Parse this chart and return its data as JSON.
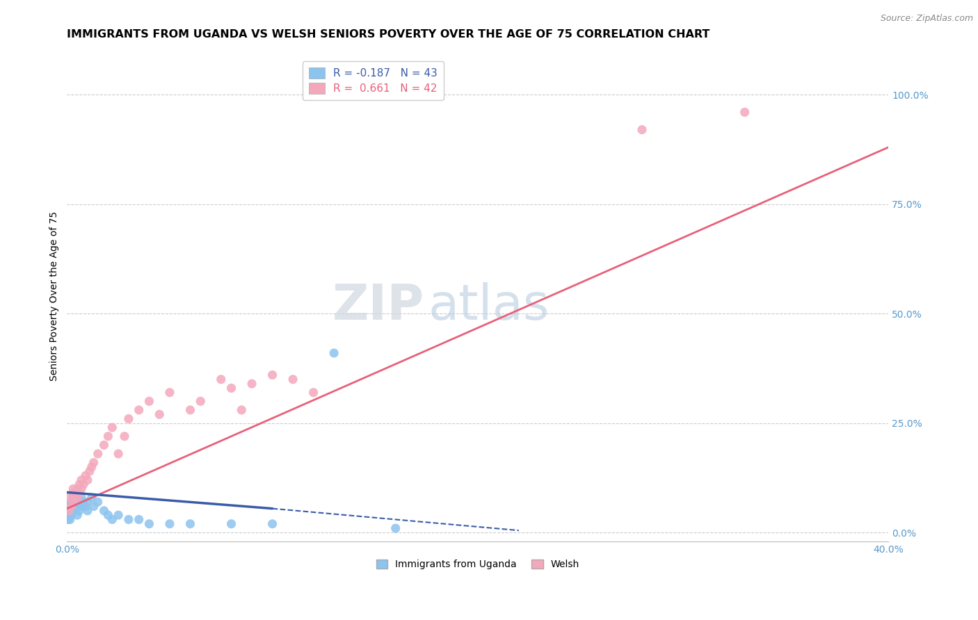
{
  "title": "IMMIGRANTS FROM UGANDA VS WELSH SENIORS POVERTY OVER THE AGE OF 75 CORRELATION CHART",
  "source": "Source: ZipAtlas.com",
  "ylabel": "Seniors Poverty Over the Age of 75",
  "xlim": [
    0.0,
    0.4
  ],
  "ylim": [
    -0.02,
    1.1
  ],
  "yticks_right": [
    0.0,
    0.25,
    0.5,
    0.75,
    1.0
  ],
  "ytick_labels_right": [
    "0.0%",
    "25.0%",
    "50.0%",
    "75.0%",
    "100.0%"
  ],
  "r_uganda": -0.187,
  "n_uganda": 43,
  "r_welsh": 0.661,
  "n_welsh": 42,
  "color_uganda": "#8CC4EE",
  "color_welsh": "#F4A8BC",
  "trendline_uganda_color": "#3A5CA8",
  "trendline_welsh_color": "#E8607A",
  "background_color": "#FFFFFF",
  "grid_color": "#CCCCCC",
  "title_fontsize": 11.5,
  "legend_fontsize": 11,
  "axis_label_fontsize": 10,
  "tick_label_color": "#5599CC",
  "uganda_x": [
    0.0005,
    0.001,
    0.001,
    0.001,
    0.0015,
    0.002,
    0.002,
    0.002,
    0.002,
    0.003,
    0.003,
    0.003,
    0.003,
    0.004,
    0.004,
    0.004,
    0.005,
    0.005,
    0.005,
    0.006,
    0.006,
    0.007,
    0.007,
    0.008,
    0.009,
    0.01,
    0.01,
    0.012,
    0.013,
    0.015,
    0.018,
    0.02,
    0.022,
    0.025,
    0.03,
    0.035,
    0.04,
    0.05,
    0.06,
    0.08,
    0.1,
    0.13,
    0.16
  ],
  "uganda_y": [
    0.03,
    0.04,
    0.05,
    0.06,
    0.03,
    0.05,
    0.06,
    0.07,
    0.04,
    0.05,
    0.06,
    0.07,
    0.08,
    0.05,
    0.06,
    0.07,
    0.04,
    0.06,
    0.08,
    0.05,
    0.07,
    0.06,
    0.08,
    0.07,
    0.06,
    0.05,
    0.07,
    0.08,
    0.06,
    0.07,
    0.05,
    0.04,
    0.03,
    0.04,
    0.03,
    0.03,
    0.02,
    0.02,
    0.02,
    0.02,
    0.02,
    0.41,
    0.01
  ],
  "welsh_x": [
    0.001,
    0.001,
    0.002,
    0.003,
    0.003,
    0.003,
    0.004,
    0.004,
    0.005,
    0.005,
    0.006,
    0.006,
    0.007,
    0.007,
    0.008,
    0.009,
    0.01,
    0.011,
    0.012,
    0.013,
    0.015,
    0.018,
    0.02,
    0.022,
    0.025,
    0.028,
    0.03,
    0.035,
    0.04,
    0.045,
    0.05,
    0.06,
    0.065,
    0.075,
    0.08,
    0.085,
    0.09,
    0.1,
    0.11,
    0.12,
    0.28,
    0.33
  ],
  "welsh_y": [
    0.05,
    0.08,
    0.06,
    0.07,
    0.09,
    0.1,
    0.08,
    0.09,
    0.08,
    0.1,
    0.11,
    0.09,
    0.1,
    0.12,
    0.11,
    0.13,
    0.12,
    0.14,
    0.15,
    0.16,
    0.18,
    0.2,
    0.22,
    0.24,
    0.18,
    0.22,
    0.26,
    0.28,
    0.3,
    0.27,
    0.32,
    0.28,
    0.3,
    0.35,
    0.33,
    0.28,
    0.34,
    0.36,
    0.35,
    0.32,
    0.92,
    0.96
  ],
  "trendline_welsh_x0": 0.0,
  "trendline_welsh_y0": 0.055,
  "trendline_welsh_x1": 0.4,
  "trendline_welsh_y1": 0.88,
  "trendline_uganda_solid_x0": 0.0,
  "trendline_uganda_solid_y0": 0.092,
  "trendline_uganda_solid_x1": 0.1,
  "trendline_uganda_solid_y1": 0.055,
  "trendline_uganda_dash_x1": 0.22,
  "trendline_uganda_dash_y1": 0.005
}
